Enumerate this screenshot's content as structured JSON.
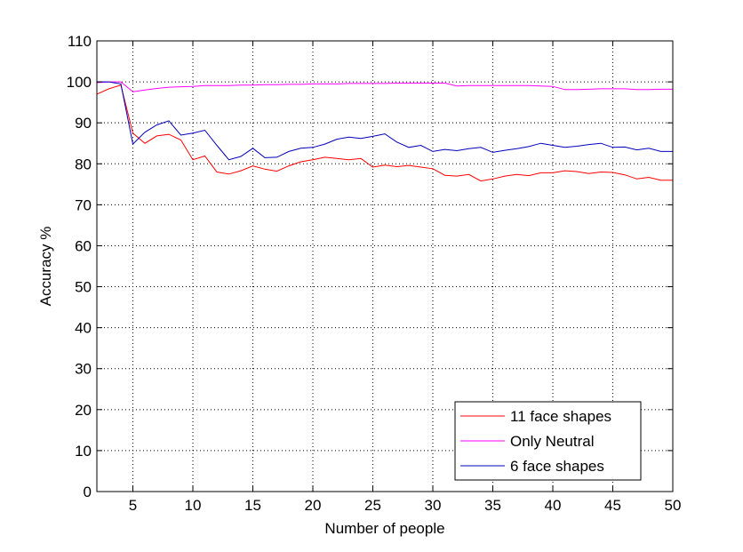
{
  "chart_data": {
    "type": "line",
    "xlabel": "Number of people",
    "ylabel": "Accuracy %",
    "xlim": [
      2,
      50
    ],
    "ylim": [
      0,
      110
    ],
    "xticks": [
      5,
      10,
      15,
      20,
      25,
      30,
      35,
      40,
      45,
      50
    ],
    "yticks": [
      0,
      10,
      20,
      30,
      40,
      50,
      60,
      70,
      80,
      90,
      100,
      110
    ],
    "grid": true,
    "legend_position": "bottom-right",
    "x": [
      2,
      3,
      4,
      5,
      6,
      7,
      8,
      9,
      10,
      11,
      12,
      13,
      14,
      15,
      16,
      17,
      18,
      19,
      20,
      21,
      22,
      23,
      24,
      25,
      26,
      27,
      28,
      29,
      30,
      31,
      32,
      33,
      34,
      35,
      36,
      37,
      38,
      39,
      40,
      41,
      42,
      43,
      44,
      45,
      46,
      47,
      48,
      49,
      50
    ],
    "series": [
      {
        "name": "11 face shapes",
        "color": "#ff0000",
        "values": [
          97,
          98.3,
          99.2,
          87.5,
          85,
          86.8,
          87.2,
          85.8,
          81,
          81.9,
          78,
          77.5,
          78.3,
          79.5,
          78.7,
          78.2,
          79.5,
          80.5,
          81,
          81.6,
          81.3,
          81,
          81.3,
          79.2,
          79.7,
          79.3,
          79.6,
          79.2,
          78.8,
          77.2,
          77,
          77.4,
          75.8,
          76.3,
          77,
          77.4,
          77.1,
          77.8,
          77.8,
          78.3,
          78.1,
          77.6,
          78,
          77.9,
          77.3,
          76.3,
          76.7,
          76,
          76
        ]
      },
      {
        "name": "Only Neutral",
        "color": "#ff00ff",
        "values": [
          99.8,
          100,
          100,
          97.6,
          98,
          98.4,
          98.7,
          98.8,
          98.9,
          99.1,
          99.1,
          99.1,
          99.2,
          99.2,
          99.3,
          99.3,
          99.4,
          99.4,
          99.5,
          99.5,
          99.5,
          99.6,
          99.6,
          99.6,
          99.6,
          99.7,
          99.7,
          99.7,
          99.7,
          99.7,
          99,
          99.1,
          99.1,
          99.1,
          99.1,
          99.1,
          99.1,
          99,
          98.9,
          98.1,
          98.1,
          98.2,
          98.3,
          98.3,
          98.3,
          98.1,
          98.1,
          98.2,
          98.2
        ]
      },
      {
        "name": "6 face shapes",
        "color": "#0000bb",
        "values": [
          100,
          100,
          99.5,
          84.8,
          87.7,
          89.5,
          90.5,
          87,
          87.5,
          88.2,
          84.5,
          81,
          81.8,
          83.8,
          81.5,
          81.6,
          83,
          83.8,
          84,
          84.8,
          86,
          86.5,
          86.2,
          86.7,
          87.3,
          85.3,
          84,
          84.5,
          83,
          83.5,
          83.2,
          83.7,
          84,
          82.8,
          83.3,
          83.7,
          84.2,
          85,
          84.5,
          84,
          84.3,
          84.7,
          85,
          84,
          84.1,
          83.4,
          83.8,
          83,
          83
        ]
      }
    ]
  }
}
